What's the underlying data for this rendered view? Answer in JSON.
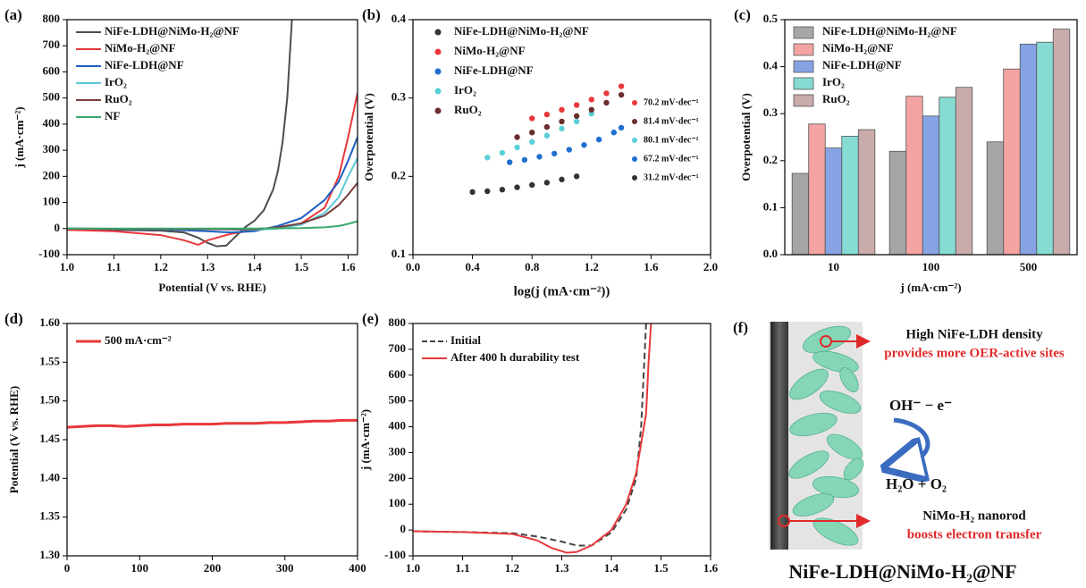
{
  "chart_data": [
    {
      "type": "line",
      "panel_label": "(a)",
      "xlabel": "Potential (V vs. RHE)",
      "ylabel": "j (mA·cm⁻²)",
      "xlim": [
        1.0,
        1.62
      ],
      "ylim": [
        -100,
        800
      ],
      "xticks": [
        {
          "value": 1.0,
          "label": "1.0"
        },
        1.1,
        1.2,
        1.3,
        1.4,
        1.5,
        1.6
      ],
      "yticks": [
        -100,
        0,
        100,
        200,
        300,
        400,
        500,
        600,
        700,
        800
      ],
      "legend": "upper left",
      "series": [
        {
          "name": "NiFe-LDH@NiMo-H₂@NF",
          "color": "#4d4d4d",
          "x": [
            1.0,
            1.1,
            1.2,
            1.25,
            1.28,
            1.3,
            1.32,
            1.34,
            1.36,
            1.38,
            1.4,
            1.42,
            1.44,
            1.45,
            1.46,
            1.47,
            1.475,
            1.48
          ],
          "values": [
            -5,
            -5,
            -8,
            -15,
            -35,
            -55,
            -68,
            -65,
            -30,
            5,
            30,
            70,
            150,
            220,
            330,
            500,
            650,
            800
          ]
        },
        {
          "name": "NiMo-H₂@NF",
          "color": "#e8383b",
          "x": [
            1.0,
            1.1,
            1.2,
            1.25,
            1.28,
            1.3,
            1.35,
            1.4,
            1.45,
            1.5,
            1.55,
            1.58,
            1.6,
            1.62
          ],
          "values": [
            -5,
            -10,
            -25,
            -45,
            -62,
            -45,
            -20,
            -5,
            5,
            20,
            80,
            200,
            350,
            520
          ]
        },
        {
          "name": "NiFe-LDH@NF",
          "color": "#1f5fc4",
          "x": [
            1.0,
            1.2,
            1.3,
            1.35,
            1.4,
            1.45,
            1.5,
            1.55,
            1.58,
            1.6,
            1.62
          ],
          "values": [
            0,
            -3,
            -10,
            -15,
            -10,
            10,
            40,
            110,
            180,
            260,
            350
          ]
        },
        {
          "name": "IrO₂",
          "color": "#5bc8d6",
          "x": [
            1.0,
            1.3,
            1.4,
            1.45,
            1.5,
            1.55,
            1.58,
            1.6,
            1.62
          ],
          "values": [
            0,
            -2,
            -5,
            0,
            15,
            60,
            120,
            200,
            270
          ]
        },
        {
          "name": "RuO₂",
          "color": "#7a3d3d",
          "x": [
            1.0,
            1.3,
            1.4,
            1.45,
            1.5,
            1.55,
            1.58,
            1.6,
            1.62
          ],
          "values": [
            0,
            -2,
            -3,
            5,
            20,
            50,
            90,
            130,
            175
          ]
        },
        {
          "name": "NF",
          "color": "#3aa86b",
          "x": [
            1.0,
            1.3,
            1.4,
            1.5,
            1.55,
            1.58,
            1.6,
            1.62
          ],
          "values": [
            0,
            0,
            0,
            2,
            5,
            10,
            18,
            28
          ]
        }
      ]
    },
    {
      "type": "scatter",
      "panel_label": "(b)",
      "xlabel": "log(j (mA·cm⁻²))",
      "ylabel": "Overpotential (V)",
      "xlim": [
        0,
        2.0
      ],
      "ylim": [
        0.1,
        0.4
      ],
      "xticks": [
        {
          "value": 0,
          "label": "0.0"
        },
        0.4,
        0.8,
        1.2,
        1.6,
        {
          "value": 2,
          "label": "2.0"
        }
      ],
      "yticks": [
        0.1,
        0.2,
        0.3,
        0.4
      ],
      "legend": "upper left",
      "series": [
        {
          "name": "NiFe-LDH@NiMo-H₂@NF",
          "color": "#333333",
          "x": [
            0.4,
            0.5,
            0.6,
            0.7,
            0.8,
            0.9,
            1.0,
            1.1
          ],
          "values": [
            0.18,
            0.181,
            0.183,
            0.186,
            0.189,
            0.192,
            0.196,
            0.2
          ]
        },
        {
          "name": "NiMo-H₂@NF",
          "color": "#e8383b",
          "x": [
            0.8,
            0.9,
            1.0,
            1.1,
            1.2,
            1.3,
            1.4
          ],
          "values": [
            0.274,
            0.279,
            0.285,
            0.291,
            0.298,
            0.306,
            0.315
          ]
        },
        {
          "name": "NiFe-LDH@NF",
          "color": "#1f6fd0",
          "x": [
            0.65,
            0.75,
            0.85,
            0.95,
            1.05,
            1.15,
            1.25,
            1.35,
            1.4
          ],
          "values": [
            0.218,
            0.221,
            0.225,
            0.229,
            0.234,
            0.24,
            0.247,
            0.256,
            0.262
          ]
        },
        {
          "name": "IrO₂",
          "color": "#5ad0d8",
          "x": [
            0.5,
            0.6,
            0.7,
            0.8,
            0.9,
            1.0,
            1.1,
            1.2
          ],
          "values": [
            0.224,
            0.23,
            0.237,
            0.244,
            0.252,
            0.261,
            0.27,
            0.28
          ]
        },
        {
          "name": "RuO₂",
          "color": "#6b2e2e",
          "x": [
            0.7,
            0.8,
            0.9,
            1.0,
            1.1,
            1.2,
            1.3,
            1.4
          ],
          "values": [
            0.25,
            0.256,
            0.263,
            0.27,
            0.277,
            0.285,
            0.294,
            0.304
          ]
        }
      ],
      "annotations": [
        {
          "text": "70.2 mV·dec⁻¹",
          "color": "#e8383b"
        },
        {
          "text": "81.4 mV·dec⁻¹",
          "color": "#6b2e2e"
        },
        {
          "text": "80.1 mV·dec⁻¹",
          "color": "#5ad0d8"
        },
        {
          "text": "67.2 mV·dec⁻¹",
          "color": "#1f6fd0"
        },
        {
          "text": "31.2 mV·dec⁻¹",
          "color": "#333333"
        }
      ]
    },
    {
      "type": "bar",
      "panel_label": "(c)",
      "xlabel": "j (mA·cm⁻²)",
      "ylabel": "Overpotential (V)",
      "categories": [
        "10",
        "100",
        "500"
      ],
      "ylim": [
        0,
        0.5
      ],
      "yticks": [
        {
          "value": 0,
          "label": "0.0"
        },
        0.1,
        0.2,
        0.3,
        0.4,
        0.5
      ],
      "legend": "upper left",
      "series": [
        {
          "name": "NiFe-LDH@NiMo-H₂@NF",
          "color": "#a6a6a6",
          "values": [
            0.173,
            0.22,
            0.24
          ]
        },
        {
          "name": "NiMo-H₂@NF",
          "color": "#f4a3a3",
          "values": [
            0.278,
            0.337,
            0.395
          ]
        },
        {
          "name": "NiFe-LDH@NF",
          "color": "#86a4e4",
          "values": [
            0.227,
            0.295,
            0.448
          ]
        },
        {
          "name": "IrO₂",
          "color": "#86dbd3",
          "values": [
            0.252,
            0.335,
            0.452
          ]
        },
        {
          "name": "RuO₂",
          "color": "#c9abab",
          "values": [
            0.266,
            0.356,
            0.48
          ]
        }
      ]
    },
    {
      "type": "line",
      "panel_label": "(d)",
      "ylabel": "Potential (V vs. RHE)",
      "xlim": [
        0,
        400
      ],
      "ylim": [
        1.3,
        1.6
      ],
      "xticks": [
        0,
        100,
        200,
        300,
        400
      ],
      "yticks": [
        {
          "value": 1.3,
          "label": "1.30"
        },
        1.35,
        {
          "value": 1.4,
          "label": "1.40"
        },
        1.45,
        {
          "value": 1.5,
          "label": "1.50"
        },
        1.55,
        {
          "value": 1.6,
          "label": "1.60"
        }
      ],
      "legend": "upper left",
      "x": [
        0,
        20,
        40,
        60,
        80,
        100,
        120,
        140,
        160,
        180,
        200,
        220,
        240,
        260,
        280,
        300,
        320,
        340,
        360,
        380,
        400
      ],
      "series": [
        {
          "name": "500 mA·cm⁻²",
          "color": "#e8383b",
          "values": [
            1.466,
            1.467,
            1.468,
            1.468,
            1.467,
            1.468,
            1.469,
            1.469,
            1.47,
            1.47,
            1.47,
            1.471,
            1.471,
            1.471,
            1.472,
            1.472,
            1.473,
            1.474,
            1.474,
            1.475,
            1.475
          ]
        }
      ]
    },
    {
      "type": "line",
      "panel_label": "(e)",
      "ylabel": "j (mA·cm⁻²)",
      "xlim": [
        1.0,
        1.6
      ],
      "ylim": [
        -100,
        800
      ],
      "xticks": [
        {
          "value": 1.0,
          "label": "1.0"
        },
        1.1,
        1.2,
        1.3,
        1.4,
        1.5,
        1.6
      ],
      "yticks": [
        -100,
        0,
        100,
        200,
        300,
        400,
        500,
        600,
        700,
        800
      ],
      "legend": "upper left",
      "series": [
        {
          "name": "Initial",
          "color": "#444444",
          "dash": true,
          "x": [
            1.0,
            1.1,
            1.2,
            1.25,
            1.3,
            1.33,
            1.36,
            1.4,
            1.43,
            1.45,
            1.46,
            1.465,
            1.47
          ],
          "values": [
            -5,
            -8,
            -12,
            -25,
            -45,
            -60,
            -60,
            -10,
            80,
            200,
            400,
            600,
            800
          ]
        },
        {
          "name": "After 400 h durability test",
          "color": "#e8383b",
          "x": [
            1.0,
            1.1,
            1.2,
            1.25,
            1.28,
            1.31,
            1.33,
            1.36,
            1.4,
            1.43,
            1.45,
            1.47,
            1.475,
            1.48
          ],
          "values": [
            -5,
            -8,
            -15,
            -40,
            -70,
            -88,
            -85,
            -60,
            0,
            100,
            220,
            450,
            650,
            800
          ]
        }
      ]
    }
  ],
  "diagram": {
    "panel_label": "(f)",
    "top_title": "High NiFe-LDH density",
    "top_note": "provides more OER-active sites",
    "reactant": "OH⁻ − e⁻",
    "product": "H₂O + O₂",
    "bottom_title": "NiMo-H₂ nanorod",
    "bottom_note": "boosts electron transfer",
    "caption": "NiFe-LDH@NiMo-H₂@NF"
  }
}
